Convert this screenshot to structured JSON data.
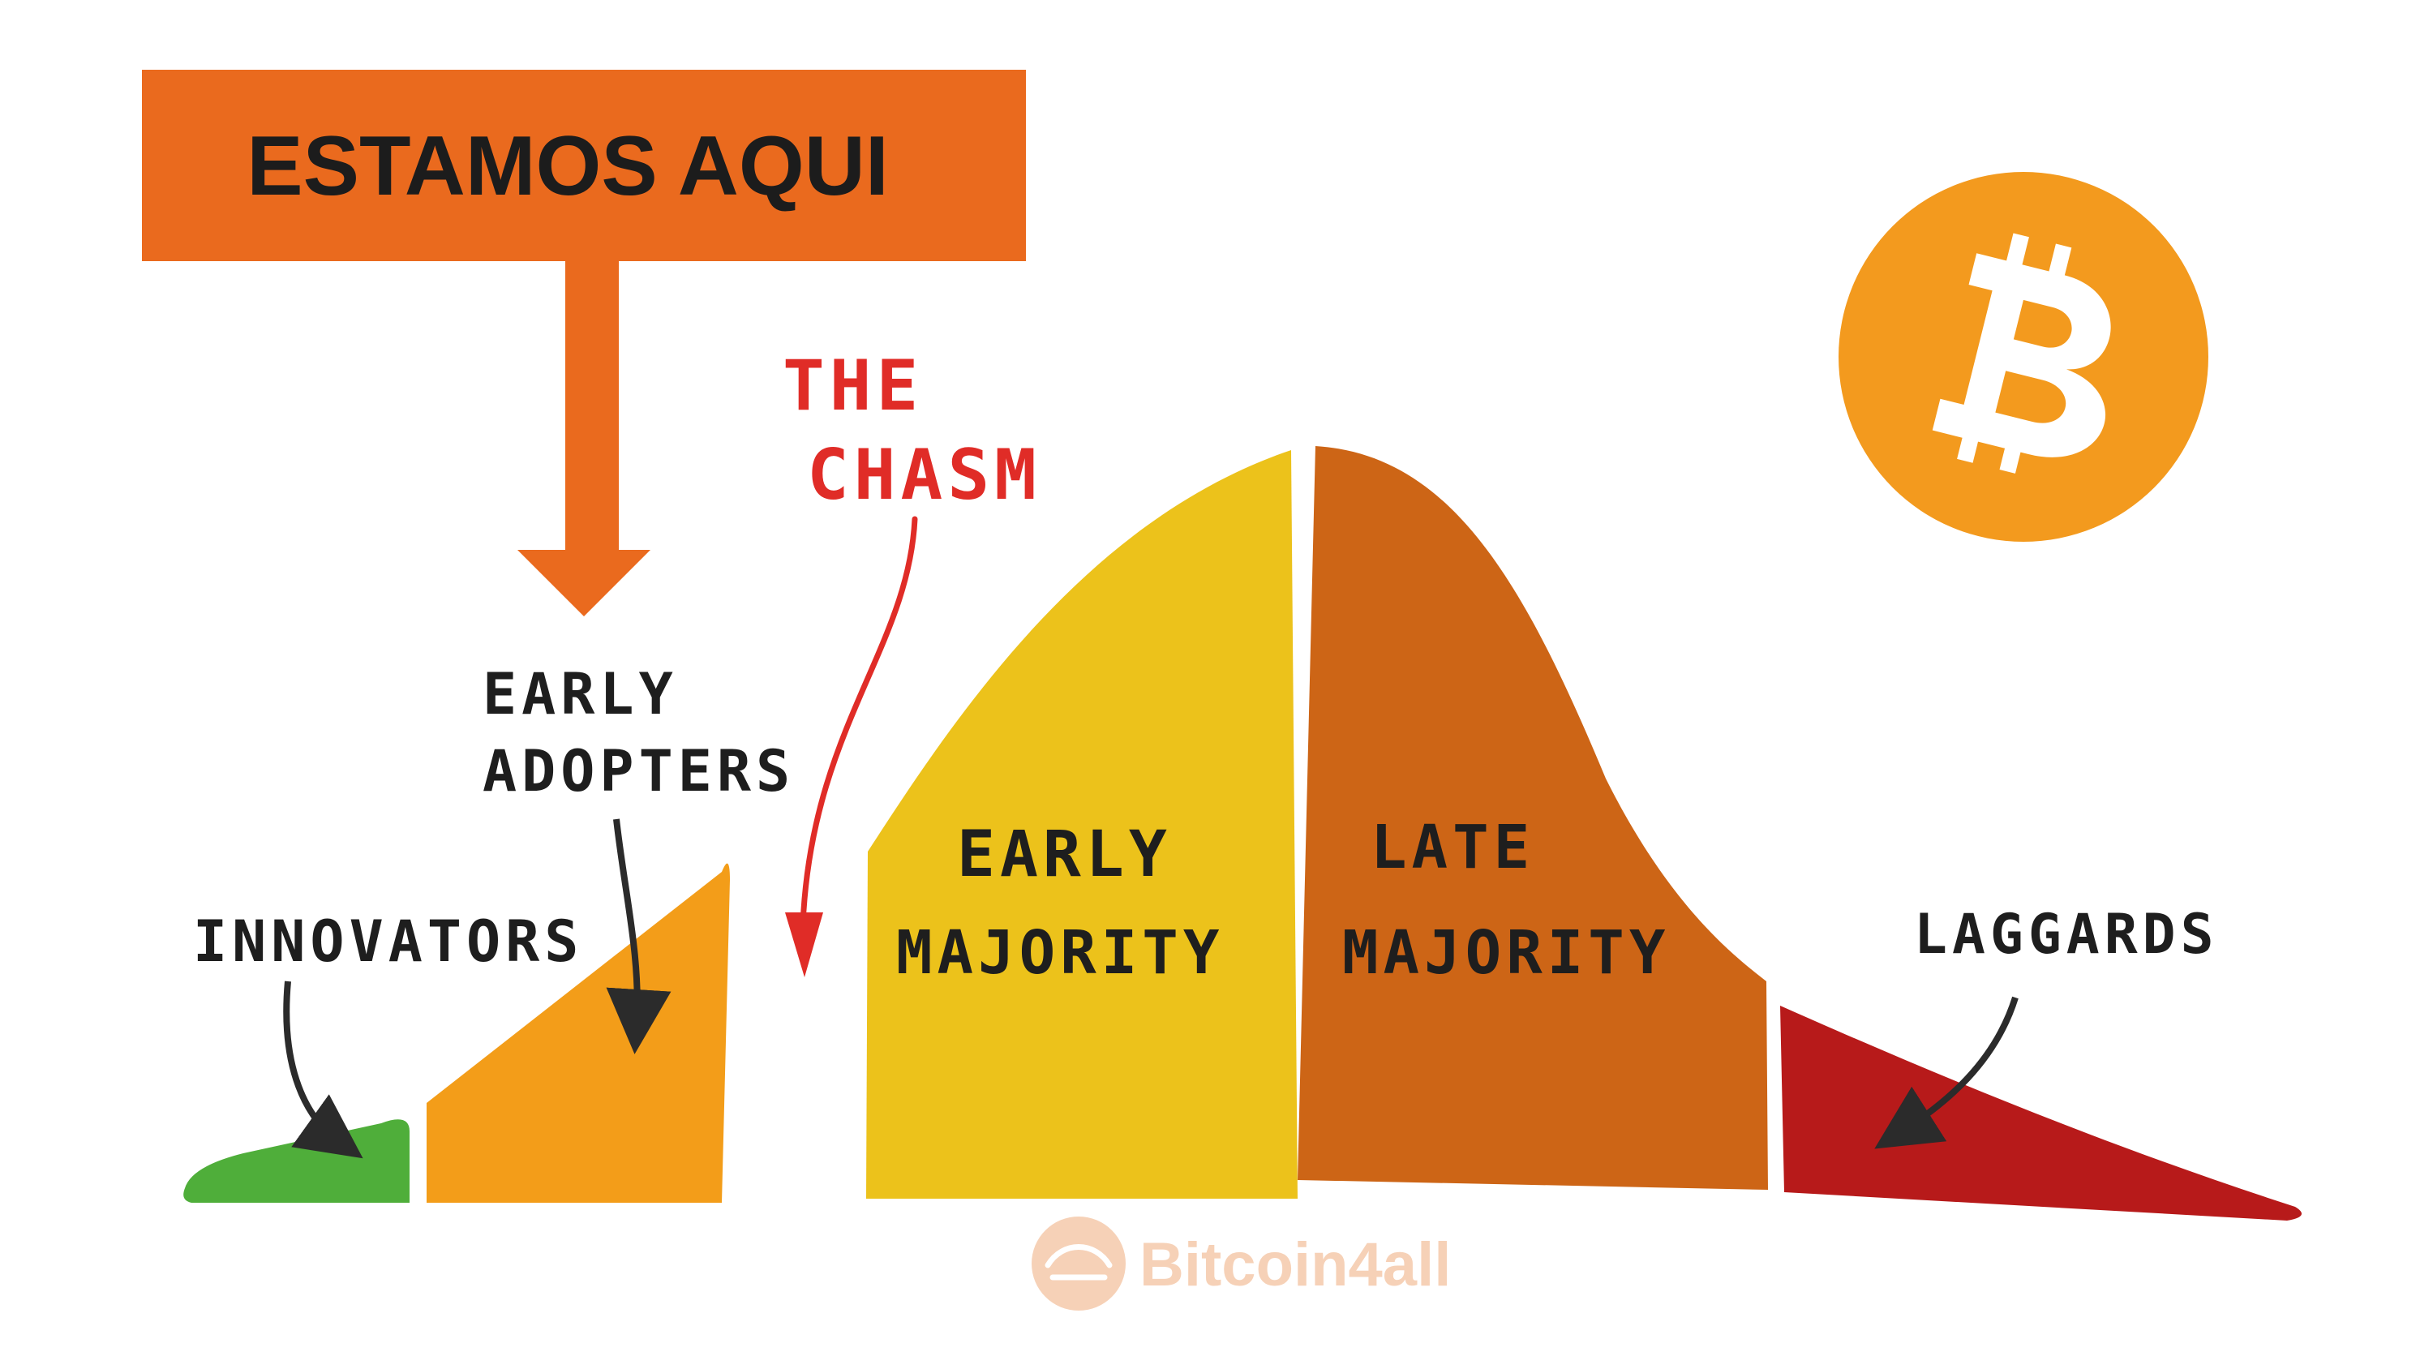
{
  "banner": {
    "label": "ESTAMOS AQUI",
    "color": "#ea6a1e"
  },
  "chasm": {
    "line1": "THE",
    "line2": "CHASM",
    "color": "#e02c27"
  },
  "segments": [
    {
      "id": "innovators",
      "line1": "INNOVATORS",
      "line2": "",
      "color": "#4fae3a"
    },
    {
      "id": "early-adopters",
      "line1": "EARLY",
      "line2": "ADOPTERS",
      "color": "#f39d19"
    },
    {
      "id": "early-majority",
      "line1": "EARLY",
      "line2": "MAJORITY",
      "color": "#ecc21b"
    },
    {
      "id": "late-majority",
      "line1": "LATE",
      "line2": "MAJORITY",
      "color": "#cd6516"
    },
    {
      "id": "laggards",
      "line1": "LAGGARDS",
      "line2": "",
      "color": "#b71a1a"
    }
  ],
  "logo": {
    "icon": "bitcoin-icon",
    "color": "#f39a1e"
  },
  "watermark": {
    "text": "Bitcoin4all",
    "icon": "handshake-icon"
  }
}
